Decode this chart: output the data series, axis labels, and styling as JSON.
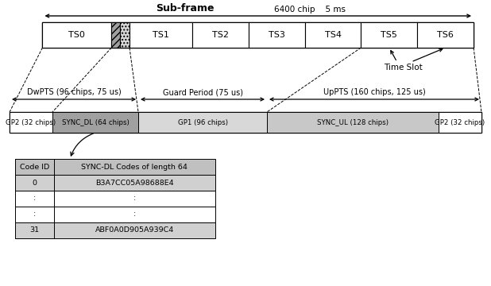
{
  "white": "#ffffff",
  "light_gray": "#c8c8c8",
  "medium_gray": "#a0a0a0",
  "dotted_gray": "#d8d8d8",
  "table_header_color": "#c0c0c0",
  "table_row_alt": "#d0d0d0",
  "subframe_label": "Sub-frame",
  "subframe_detail": "6400 chip    5 ms",
  "time_slot_label": "Time Slot",
  "dwpts_label": "DwPTS (96 chips, 75 us)",
  "guard_label": "Guard Period (75 us)",
  "uppts_label": "UpPTS (160 chips, 125 us)",
  "seg_labels": [
    "GP2 (32 chips)",
    "SYNC_DL (64 chips)",
    "GP1 (96 chips)",
    "SYNC_UL (128 chips)",
    "GP2 (32 chips)"
  ],
  "seg_chips": [
    32,
    64,
    96,
    128,
    32
  ],
  "table_header": [
    "Code ID",
    "SYNC-DL Codes of length 64"
  ],
  "table_rows": [
    [
      "0",
      "B3A7CC05A98688E4"
    ],
    [
      ":",
      ":"
    ],
    [
      ":",
      ":"
    ],
    [
      "31",
      "ABF0A0D905A939C4"
    ]
  ]
}
